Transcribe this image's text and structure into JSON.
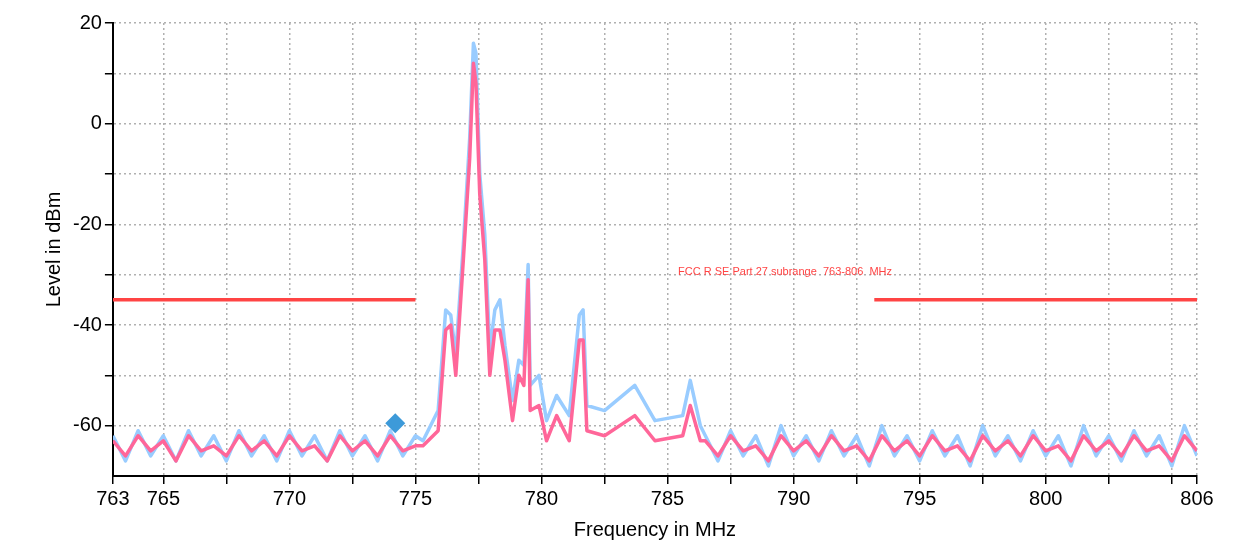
{
  "chart_data": {
    "type": "line",
    "xlabel": "Frequency in MHz",
    "ylabel": "Level in dBm",
    "x": [
      763,
      763.5,
      764,
      764.5,
      765,
      765.5,
      766,
      766.5,
      767,
      767.5,
      768,
      768.5,
      769,
      769.5,
      770,
      770.5,
      771,
      771.5,
      772,
      772.5,
      773,
      773.5,
      774,
      774.5,
      775,
      775.3,
      775.9,
      776.2,
      776.4,
      776.6,
      776.9,
      777.15,
      777.3,
      777.4,
      777.55,
      777.75,
      777.95,
      778.15,
      778.35,
      778.55,
      778.85,
      779.1,
      779.3,
      779.47,
      779.55,
      779.9,
      780.2,
      780.6,
      781.1,
      781.5,
      781.65,
      781.8,
      782.5,
      783.7,
      784.5,
      785.6,
      785.9,
      786.3,
      786.5,
      787,
      787.5,
      788,
      788.5,
      789,
      789.5,
      790,
      790.5,
      791,
      791.5,
      792,
      792.5,
      793,
      793.5,
      794,
      794.5,
      795,
      795.5,
      796,
      796.5,
      797,
      797.5,
      798,
      798.5,
      799,
      799.5,
      800,
      800.5,
      801,
      801.5,
      802,
      802.5,
      803,
      803.5,
      804,
      804.5,
      805,
      805.5,
      806
    ],
    "series": [
      {
        "color": "#99ccff",
        "marker": "none",
        "values": [
          -62,
          -67,
          -61,
          -66,
          -62,
          -67,
          -61,
          -66,
          -62,
          -67,
          -61,
          -66,
          -62,
          -67,
          -61,
          -66,
          -62,
          -67,
          -61,
          -66,
          -62,
          -67,
          -61,
          -66,
          -62,
          -63,
          -57,
          -37,
          -38,
          -46,
          -24,
          -3,
          16,
          14,
          -10,
          -22,
          -45,
          -37,
          -35,
          -44,
          -55,
          -47,
          -48,
          -28,
          -52,
          -50,
          -59,
          -54,
          -58,
          -38,
          -37,
          -56,
          -57,
          -52,
          -59,
          -58,
          -51,
          -60,
          -62,
          -67,
          -61,
          -66,
          -62,
          -68,
          -60,
          -66,
          -62,
          -67,
          -61,
          -66,
          -62,
          -68,
          -60,
          -66,
          -62,
          -67,
          -61,
          -66,
          -62,
          -68,
          -60,
          -66,
          -62,
          -67,
          -61,
          -66,
          -62,
          -68,
          -60,
          -66,
          -62,
          -67,
          -61,
          -66,
          -62,
          -68,
          -60,
          -66
        ]
      },
      {
        "color": "#ff6699",
        "marker": "none",
        "values": [
          -63,
          -66,
          -62,
          -65,
          -63,
          -67,
          -62,
          -65,
          -64,
          -66,
          -62,
          -65,
          -63,
          -66,
          -62,
          -65,
          -64,
          -67,
          -62,
          -65,
          -63,
          -66,
          -62,
          -65,
          -64,
          -64,
          -61,
          -41,
          -40,
          -50,
          -27,
          -7,
          12,
          8,
          -14,
          -27,
          -50,
          -41,
          -41,
          -47,
          -59,
          -50,
          -52,
          -31,
          -57,
          -56,
          -63,
          -58,
          -63,
          -43,
          -43,
          -61,
          -62,
          -58,
          -63,
          -62,
          -56,
          -63,
          -63,
          -66,
          -62,
          -65,
          -64,
          -67,
          -62,
          -65,
          -63,
          -66,
          -62,
          -65,
          -64,
          -67,
          -62,
          -65,
          -63,
          -66,
          -62,
          -65,
          -64,
          -67,
          -62,
          -65,
          -63,
          -66,
          -62,
          -65,
          -64,
          -67,
          -62,
          -65,
          -63,
          -66,
          -62,
          -65,
          -64,
          -67,
          -62,
          -65
        ]
      },
      {
        "type": "line",
        "color": "#ff4444",
        "marker": "none",
        "x": [
          763,
          775,
          784,
          793.2,
          806
        ],
        "values": [
          -35,
          -35,
          null,
          -35,
          -35
        ]
      },
      {
        "type": "scatter",
        "color": "#3d9ad9",
        "marker": "diamond",
        "x": [
          774.2
        ],
        "values": [
          -59.5
        ]
      }
    ],
    "annotations": [
      "FCC R SE Part 27 subrange  763-806  MHz"
    ],
    "xlim": [
      763,
      806
    ],
    "ylim": [
      -70,
      20
    ],
    "xticks": [
      763,
      765,
      {
        "value": 767.5,
        "label": null
      },
      770,
      {
        "value": 772.5,
        "label": null
      },
      775,
      {
        "value": 777.5,
        "label": null
      },
      780,
      {
        "value": 782.5,
        "label": null
      },
      785,
      {
        "value": 787.5,
        "label": null
      },
      790,
      {
        "value": 792.5,
        "label": null
      },
      795,
      {
        "value": 797.5,
        "label": null
      },
      800,
      {
        "value": 802.5,
        "label": null
      },
      {
        "value": 805,
        "label": null
      },
      806
    ],
    "yticks": [
      -60,
      {
        "value": -50,
        "label": null
      },
      -40,
      {
        "value": -30,
        "label": null
      },
      -20,
      {
        "value": -10,
        "label": null
      },
      0,
      {
        "value": 10,
        "label": null
      },
      20
    ],
    "grid": true
  }
}
